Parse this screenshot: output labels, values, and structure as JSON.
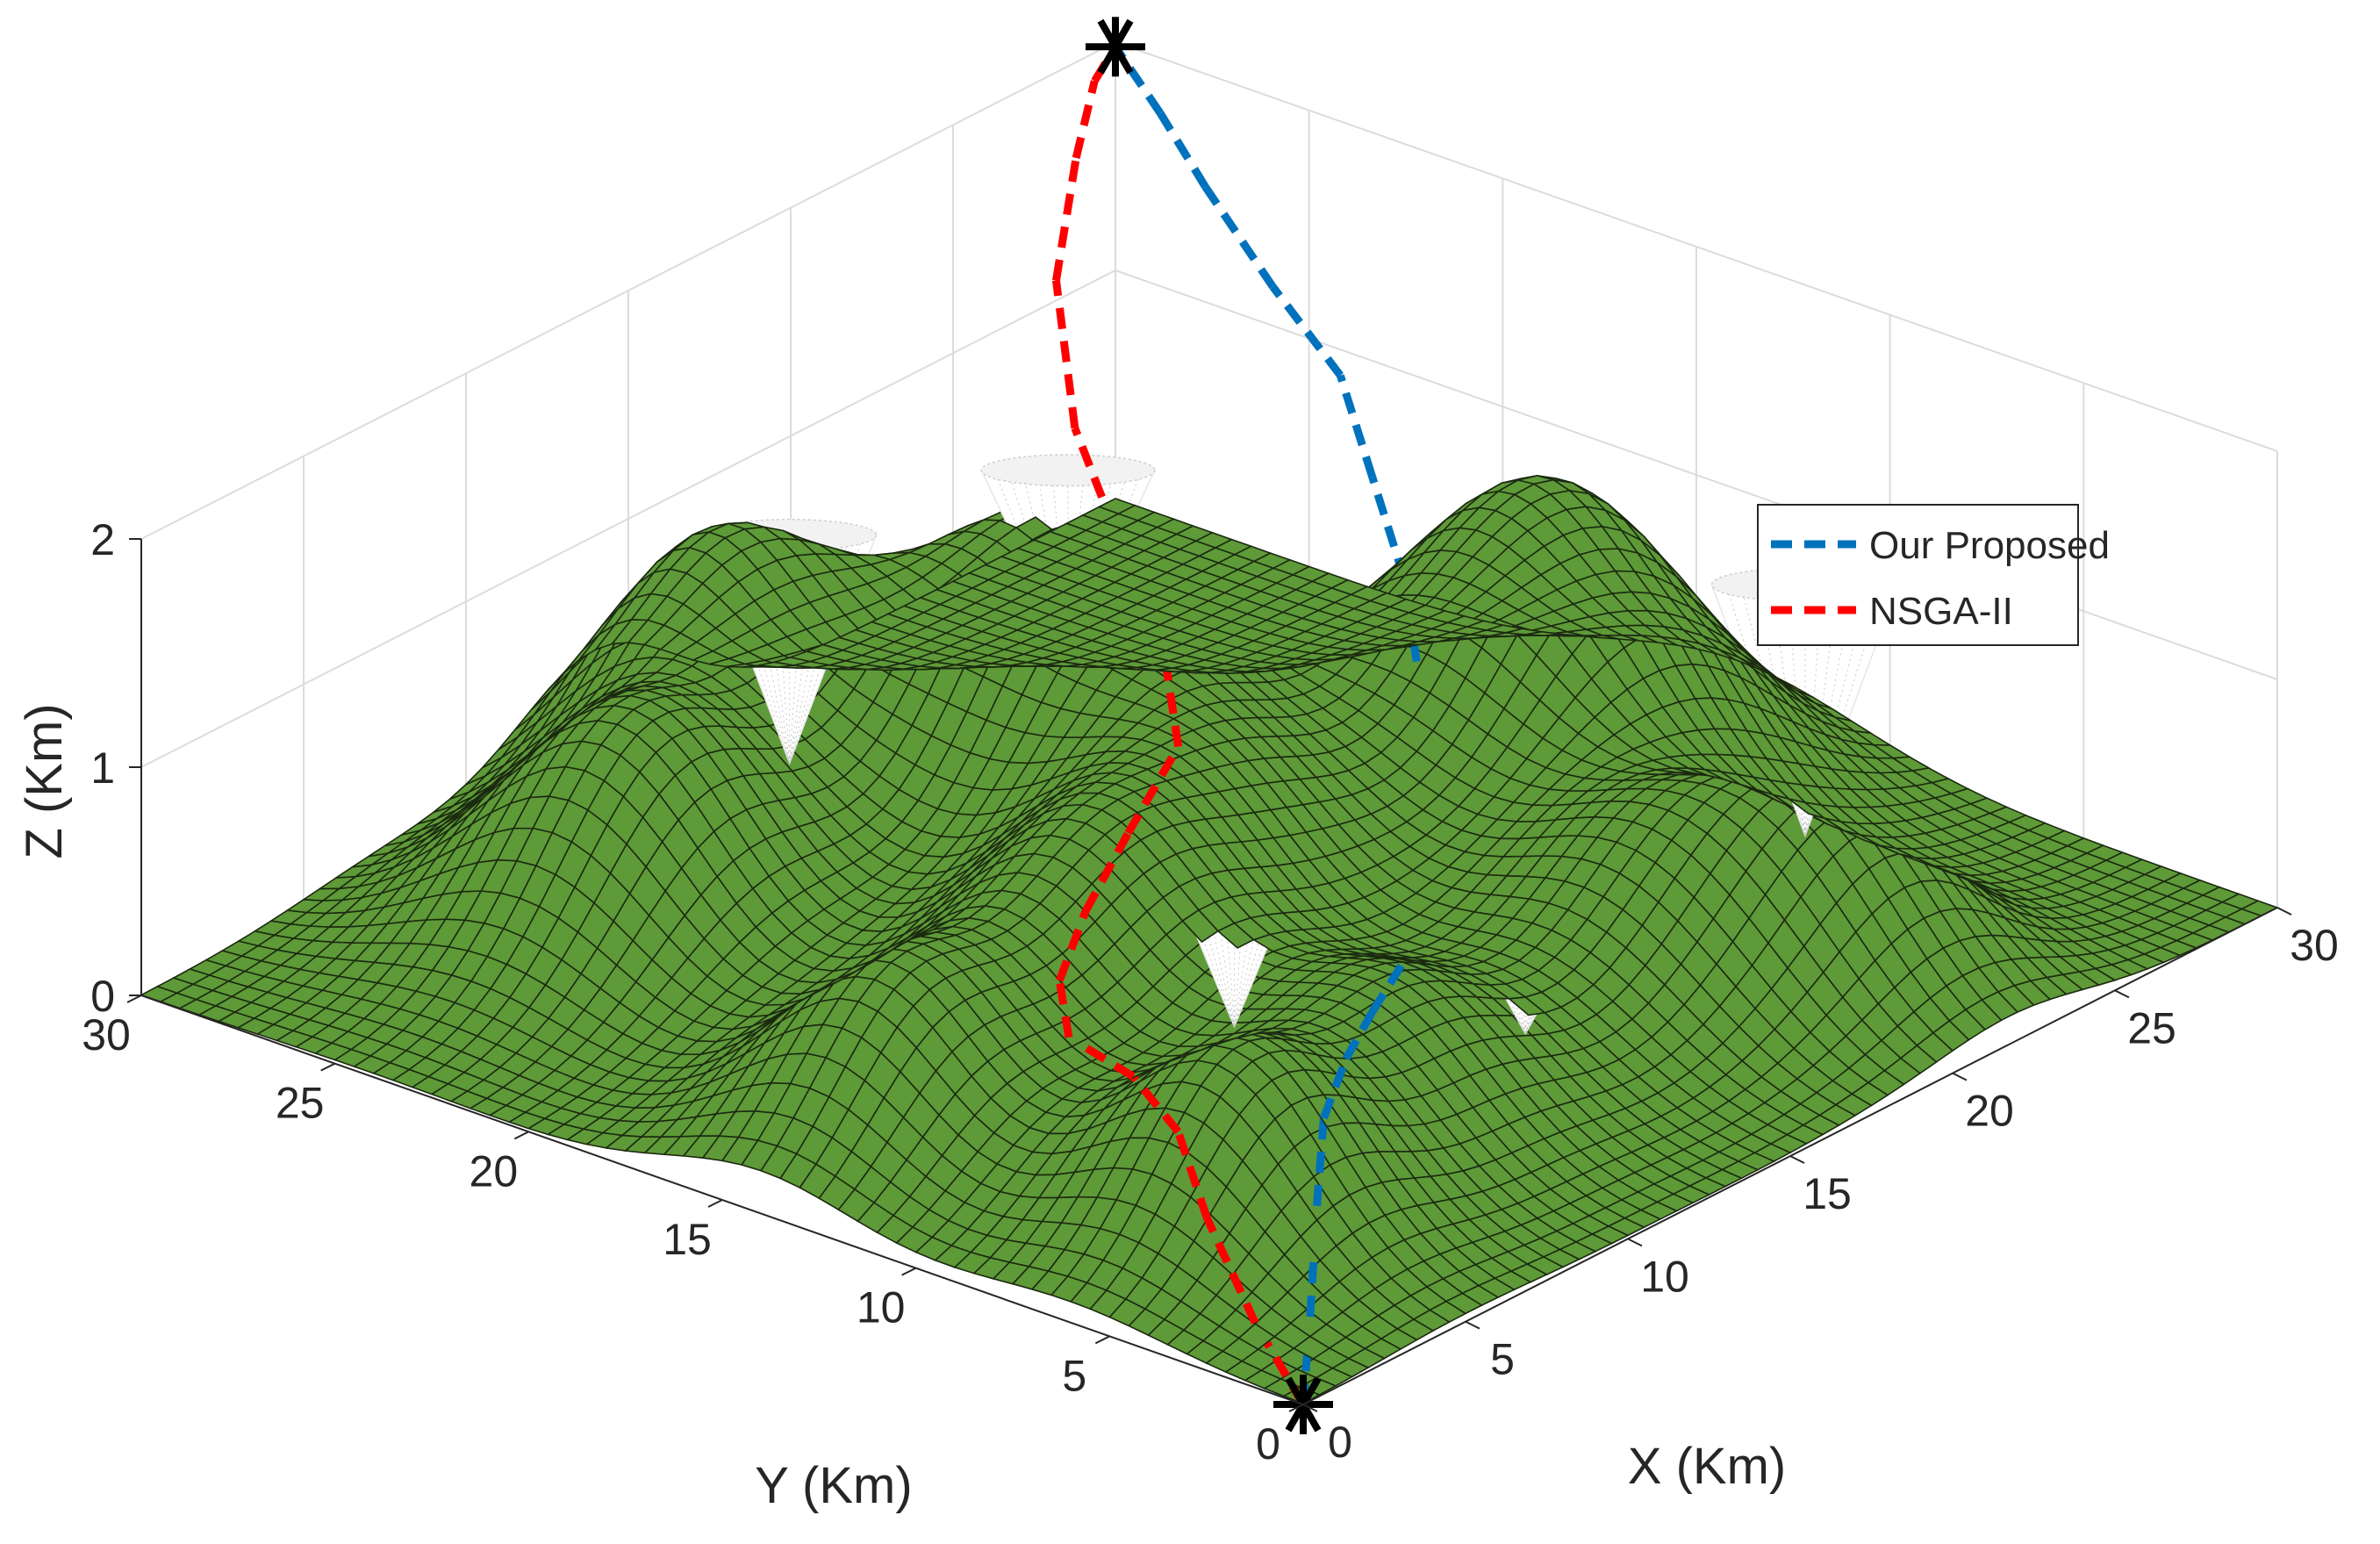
{
  "chart_data": {
    "type": "surface3d",
    "xlabel": "X (Km)",
    "ylabel": "Y (Km)",
    "zlabel": "Z (Km)",
    "xlim": [
      0,
      30
    ],
    "ylim": [
      0,
      30
    ],
    "zlim": [
      0,
      2
    ],
    "xticks": [
      "0",
      "5",
      "10",
      "15",
      "20",
      "25",
      "30"
    ],
    "yticks": [
      "0",
      "5",
      "10",
      "15",
      "20",
      "25",
      "30"
    ],
    "zticks": [
      "0",
      "1",
      "2"
    ],
    "grid": true,
    "legend_position": "upper-right",
    "terrain_color": "#5e9a38",
    "mesh_color": "#1b2a10",
    "terrain_peaks": [
      {
        "x": 24,
        "y": 14,
        "h": 1.45,
        "s": 3.2
      },
      {
        "x": 17,
        "y": 21,
        "h": 1.35,
        "s": 3.0
      },
      {
        "x": 14,
        "y": 27,
        "h": 1.05,
        "s": 2.4
      },
      {
        "x": 8,
        "y": 24,
        "h": 1.0,
        "s": 2.8
      },
      {
        "x": 15,
        "y": 15,
        "h": 0.7,
        "s": 2.8
      },
      {
        "x": 10,
        "y": 14,
        "h": 0.8,
        "s": 2.6
      },
      {
        "x": 4,
        "y": 14,
        "h": 0.75,
        "s": 2.4
      },
      {
        "x": 5,
        "y": 6,
        "h": 0.8,
        "s": 2.4
      },
      {
        "x": 11,
        "y": 7,
        "h": 0.6,
        "s": 2.5
      },
      {
        "x": 19,
        "y": 7,
        "h": 0.7,
        "s": 2.8
      },
      {
        "x": 22,
        "y": 4,
        "h": 0.55,
        "s": 2.2
      }
    ],
    "obstacles": [
      {
        "x": 14,
        "y": 25,
        "r": 2.6,
        "ztop": 1.3,
        "zbot": 0.3
      },
      {
        "x": 19,
        "y": 22,
        "r": 2.6,
        "ztop": 1.4,
        "zbot": 0.6
      },
      {
        "x": 11,
        "y": 11,
        "r": 2.0,
        "ztop": 0.9,
        "zbot": 0.2
      },
      {
        "x": 14,
        "y": 6,
        "r": 2.1,
        "ztop": 0.8,
        "zbot": 0.25
      },
      {
        "x": 25,
        "y": 8,
        "r": 2.8,
        "ztop": 1.3,
        "zbot": 0.2
      }
    ],
    "start_point": {
      "x": 0,
      "y": 0,
      "z": 0
    },
    "end_point": {
      "x": 30,
      "y": 30,
      "z": 1.98
    },
    "series": [
      {
        "name": "Our Proposed",
        "color": "#0072bd",
        "points": [
          [
            0,
            0,
            0
          ],
          [
            2,
            1.5,
            0.15
          ],
          [
            4,
            3,
            0.4
          ],
          [
            6,
            4.5,
            0.55
          ],
          [
            8,
            5.6,
            0.6
          ],
          [
            10,
            6.6,
            0.6
          ],
          [
            13,
            8,
            0.6
          ],
          [
            15,
            9.5,
            0.75
          ],
          [
            17,
            11,
            0.95
          ],
          [
            19,
            13,
            1.1
          ],
          [
            21,
            15,
            1.2
          ],
          [
            23,
            17.5,
            1.35
          ],
          [
            25,
            20,
            1.5
          ],
          [
            26.5,
            23,
            1.6
          ],
          [
            28,
            26,
            1.75
          ],
          [
            29,
            28,
            1.88
          ],
          [
            30,
            30,
            1.98
          ]
        ]
      },
      {
        "name": "NSGA-II",
        "color": "#ff0000",
        "points": [
          [
            0,
            0,
            0
          ],
          [
            1.5,
            2.5,
            0.1
          ],
          [
            3,
            5,
            0.3
          ],
          [
            4.5,
            7,
            0.45
          ],
          [
            5.5,
            9,
            0.5
          ],
          [
            6.5,
            11.5,
            0.45
          ],
          [
            8,
            13,
            0.5
          ],
          [
            10,
            14,
            0.6
          ],
          [
            12.5,
            15,
            0.7
          ],
          [
            15,
            15.8,
            0.85
          ],
          [
            17,
            17.8,
            0.95
          ],
          [
            19,
            20.5,
            1.1
          ],
          [
            21,
            23.5,
            1.35
          ],
          [
            24,
            26.5,
            1.6
          ],
          [
            27,
            28.5,
            1.8
          ],
          [
            29,
            29.7,
            1.92
          ],
          [
            30,
            30,
            1.98
          ]
        ]
      }
    ]
  }
}
